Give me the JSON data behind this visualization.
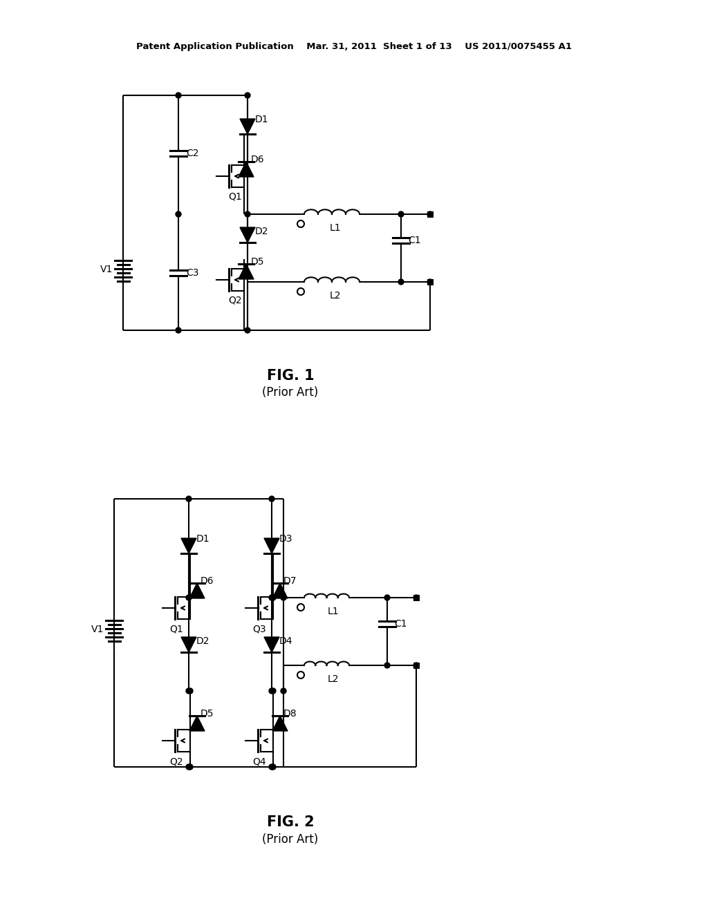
{
  "background_color": "#ffffff",
  "line_color": "#000000",
  "line_width": 1.5,
  "header": "Patent Application Publication    Mar. 31, 2011  Sheet 1 of 13    US 2011/0075455 A1",
  "fig1_title": "FIG. 1",
  "fig1_sub": "(Prior Art)",
  "fig2_title": "FIG. 2",
  "fig2_sub": "(Prior Art)"
}
